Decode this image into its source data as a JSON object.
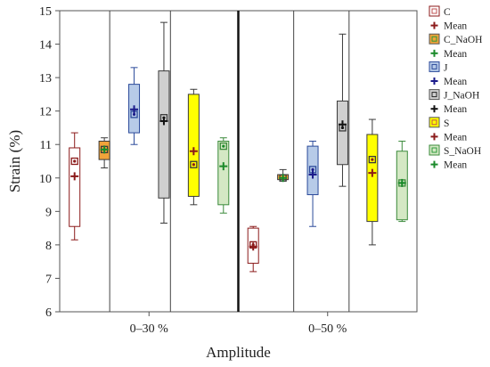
{
  "chart_data": {
    "type": "boxplot",
    "ylabel": "Strain (%)",
    "xlabel": "Amplitude",
    "ylim": [
      6,
      15
    ],
    "yticks": [
      6,
      7,
      8,
      9,
      10,
      11,
      12,
      13,
      14,
      15
    ],
    "grid": "vertical separators only",
    "legend_position": "right",
    "groups": [
      "0–30 %",
      "0–50 %"
    ],
    "series": [
      {
        "name": "C",
        "color": "#ffffff",
        "edge": "#8b1a1a",
        "mean_color": "#8b1a1a",
        "boxes": [
          {
            "min": 8.15,
            "q1": 8.55,
            "median": 10.5,
            "q3": 10.9,
            "max": 11.35,
            "mean": 10.05
          },
          {
            "min": 7.2,
            "q1": 7.45,
            "median": 8.0,
            "q3": 8.5,
            "max": 8.55,
            "mean": 7.95
          }
        ]
      },
      {
        "name": "C_NaOH",
        "color": "#f0a33a",
        "edge": "#3a3a3a",
        "mean_color": "#1a8a2a",
        "boxes": [
          {
            "min": 10.3,
            "q1": 10.55,
            "median": 10.85,
            "q3": 11.1,
            "max": 11.2,
            "mean": 10.85
          },
          {
            "min": 9.95,
            "q1": 9.95,
            "median": 10.0,
            "q3": 10.1,
            "max": 10.25,
            "mean": 10.0
          }
        ]
      },
      {
        "name": "J",
        "color": "#b7cbe8",
        "edge": "#2b4a9a",
        "mean_color": "#1a1a8a",
        "boxes": [
          {
            "min": 11.0,
            "q1": 11.35,
            "median": 11.9,
            "q3": 12.8,
            "max": 13.3,
            "mean": 12.05
          },
          {
            "min": 8.55,
            "q1": 9.5,
            "median": 10.25,
            "q3": 10.95,
            "max": 11.1,
            "mean": 10.1
          }
        ]
      },
      {
        "name": "J_NaOH",
        "color": "#d0d0d0",
        "edge": "#3a3a3a",
        "mean_color": "#111111",
        "boxes": [
          {
            "min": 8.65,
            "q1": 9.4,
            "median": 11.8,
            "q3": 13.2,
            "max": 14.65,
            "mean": 11.7
          },
          {
            "min": 9.75,
            "q1": 10.4,
            "median": 11.5,
            "q3": 12.3,
            "max": 14.3,
            "mean": 11.6
          }
        ]
      },
      {
        "name": "S",
        "color": "#ffff00",
        "edge": "#3a3a3a",
        "mean_color": "#8b1a1a",
        "boxes": [
          {
            "min": 9.2,
            "q1": 9.45,
            "median": 10.4,
            "q3": 12.5,
            "max": 12.65,
            "mean": 10.8
          },
          {
            "min": 8.0,
            "q1": 8.7,
            "median": 10.55,
            "q3": 11.3,
            "max": 11.75,
            "mean": 10.15
          }
        ]
      },
      {
        "name": "S_NaOH",
        "color": "#d4e8c4",
        "edge": "#3a8a3a",
        "mean_color": "#1a8a2a",
        "boxes": [
          {
            "min": 8.95,
            "q1": 9.2,
            "median": 10.95,
            "q3": 11.1,
            "max": 11.2,
            "mean": 10.35
          },
          {
            "min": 8.7,
            "q1": 8.75,
            "median": 9.85,
            "q3": 10.8,
            "max": 11.1,
            "mean": 9.85
          }
        ]
      }
    ],
    "legend": [
      {
        "label": "C",
        "kind": "box",
        "fill": "#ffffff",
        "edge": "#8b1a1a",
        "dot": "#c05050"
      },
      {
        "label": "Mean",
        "kind": "plus",
        "color": "#8b1a1a"
      },
      {
        "label": "C_NaOH",
        "kind": "box",
        "fill": "#f0a33a",
        "edge": "#555555",
        "dot": "#2a9a3a"
      },
      {
        "label": "Mean",
        "kind": "plus",
        "color": "#1a8a2a"
      },
      {
        "label": "J",
        "kind": "box",
        "fill": "#b7cbe8",
        "edge": "#2b4a9a",
        "dot": "#2b4a9a"
      },
      {
        "label": "Mean",
        "kind": "plus",
        "color": "#1a1a8a"
      },
      {
        "label": "J_NaOH",
        "kind": "box",
        "fill": "#d0d0d0",
        "edge": "#555555",
        "dot": "#222222"
      },
      {
        "label": "Mean",
        "kind": "plus",
        "color": "#111111"
      },
      {
        "label": "S",
        "kind": "box",
        "fill": "#ffff00",
        "edge": "#555555",
        "dot": "#c05050"
      },
      {
        "label": "Mean",
        "kind": "plus",
        "color": "#8b1a1a"
      },
      {
        "label": "S_NaOH",
        "kind": "box",
        "fill": "#d4e8c4",
        "edge": "#3a8a3a",
        "dot": "#2a9a3a"
      },
      {
        "label": "Mean",
        "kind": "plus",
        "color": "#1a8a2a"
      }
    ]
  }
}
